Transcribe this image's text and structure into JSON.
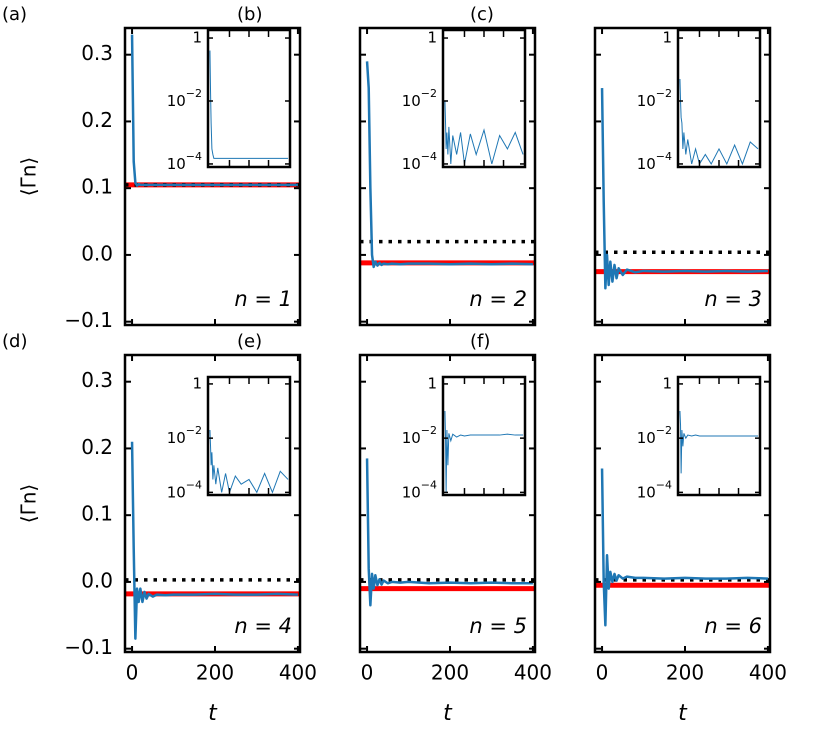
{
  "chart_data": [
    {
      "type": "line",
      "panel_label": "(a)",
      "annotation": "n = 1",
      "ylabel": "⟨Γn⟩",
      "x": [
        0,
        4,
        8,
        12,
        16,
        20,
        25,
        30,
        35,
        40,
        50,
        60,
        80,
        100,
        150,
        200,
        250,
        300,
        350,
        400
      ],
      "series": [
        {
          "color": "#1f77b4",
          "values": [
            0.33,
            0.14,
            0.108,
            0.104,
            0.106,
            0.105,
            0.105,
            0.105,
            0.105,
            0.105,
            0.105,
            0.105,
            0.105,
            0.105,
            0.105,
            0.105,
            0.105,
            0.105,
            0.105,
            0.105
          ]
        }
      ],
      "hlines": [
        {
          "value": 0.105,
          "color": "#ff0000",
          "style": "solid"
        },
        {
          "value": 0.105,
          "color": "#000000",
          "style": "dotted"
        }
      ],
      "xlim": [
        -17,
        405
      ],
      "ylim": [
        -0.105,
        0.34
      ],
      "xticks": [
        0,
        200,
        400
      ],
      "yticks": [
        {
          "value": -0.1,
          "label": "−0.1"
        },
        {
          "value": 0,
          "label": "0.0"
        },
        0.1,
        0.2,
        0.3
      ],
      "inset": {
        "type": "line",
        "log_y": true,
        "color": "#1f77b4",
        "x": [
          0,
          3,
          6,
          10,
          15,
          20,
          30,
          40,
          60,
          80,
          100,
          130,
          160,
          200,
          240,
          280,
          320,
          360,
          400
        ],
        "values": [
          0.4,
          0.02,
          0.002,
          0.0003,
          0.0002,
          0.00015,
          0.00015,
          0.00015,
          0.00015,
          0.00015,
          0.00015,
          0.00015,
          0.00015,
          0.00015,
          0.00015,
          0.00015,
          0.00015,
          0.00015,
          0.00015
        ],
        "xlim": [
          -10,
          410
        ],
        "ylim": [
          8e-05,
          1.8
        ],
        "xticks": [
          100,
          200,
          300
        ],
        "yticks": [
          1,
          {
            "value": 0.01,
            "label": "10−2"
          },
          {
            "value": 0.0001,
            "label": "10−4"
          }
        ]
      }
    },
    {
      "type": "line",
      "panel_label": "(b)",
      "annotation": "n = 2",
      "x": [
        0,
        4,
        8,
        12,
        16,
        20,
        25,
        30,
        35,
        40,
        50,
        60,
        80,
        100,
        150,
        200,
        250,
        300,
        350,
        400
      ],
      "series": [
        {
          "color": "#1f77b4",
          "values": [
            0.29,
            0.25,
            0.1,
            0.0,
            -0.018,
            -0.01,
            -0.016,
            -0.012,
            -0.015,
            -0.013,
            -0.014,
            -0.013,
            -0.014,
            -0.013,
            -0.013,
            -0.014,
            -0.013,
            -0.014,
            -0.013,
            -0.014
          ]
        }
      ],
      "hlines": [
        {
          "value": -0.012,
          "color": "#ff0000",
          "style": "solid"
        },
        {
          "value": 0.02,
          "color": "#000000",
          "style": "dotted"
        }
      ],
      "xlim": [
        -17,
        405
      ],
      "ylim": [
        -0.105,
        0.34
      ],
      "xticks": [
        0,
        200,
        400
      ],
      "yticks": [
        -0.1,
        0,
        0.1,
        0.2,
        0.3
      ],
      "inset": {
        "type": "line",
        "log_y": true,
        "color": "#1f77b4",
        "x": [
          0,
          3,
          6,
          10,
          15,
          20,
          30,
          40,
          60,
          80,
          100,
          130,
          160,
          200,
          240,
          280,
          320,
          360,
          400
        ],
        "values": [
          0.01,
          0.002,
          0.0003,
          0.001,
          0.0002,
          0.0015,
          0.0001,
          0.0008,
          0.0002,
          0.001,
          0.0001,
          0.0009,
          0.0002,
          0.0012,
          0.0001,
          0.0008,
          0.0003,
          0.001,
          0.0002
        ],
        "xlim": [
          -10,
          410
        ],
        "ylim": [
          8e-05,
          1.8
        ],
        "xticks": [
          100,
          200,
          300
        ],
        "yticks": [
          1,
          {
            "value": 0.01,
            "label": "10−2"
          },
          {
            "value": 0.0001,
            "label": "10−4"
          }
        ]
      }
    },
    {
      "type": "line",
      "panel_label": "(c)",
      "annotation": "n = 3",
      "x": [
        0,
        4,
        8,
        12,
        16,
        20,
        25,
        30,
        35,
        40,
        50,
        60,
        80,
        100,
        150,
        200,
        250,
        300,
        350,
        400
      ],
      "series": [
        {
          "color": "#1f77b4",
          "values": [
            0.25,
            0.08,
            -0.05,
            0.0,
            -0.045,
            -0.01,
            -0.04,
            -0.015,
            -0.035,
            -0.02,
            -0.03,
            -0.022,
            -0.026,
            -0.024,
            -0.025,
            -0.024,
            -0.025,
            -0.024,
            -0.025,
            -0.024
          ]
        }
      ],
      "hlines": [
        {
          "value": -0.025,
          "color": "#ff0000",
          "style": "solid"
        },
        {
          "value": 0.004,
          "color": "#000000",
          "style": "dotted"
        }
      ],
      "xlim": [
        -17,
        405
      ],
      "ylim": [
        -0.105,
        0.34
      ],
      "xticks": [
        0,
        200,
        400
      ],
      "yticks": [
        -0.1,
        0,
        0.1,
        0.2,
        0.3
      ],
      "inset": {
        "type": "line",
        "log_y": true,
        "color": "#1f77b4",
        "x": [
          0,
          3,
          6,
          10,
          15,
          20,
          30,
          40,
          60,
          80,
          100,
          130,
          160,
          200,
          240,
          280,
          320,
          360,
          400
        ],
        "values": [
          0.05,
          0.01,
          0.003,
          0.002,
          0.0003,
          0.001,
          0.0002,
          0.0006,
          0.0001,
          0.0003,
          0.0001,
          0.0002,
          0.0001,
          0.0003,
          0.0001,
          0.0004,
          0.0001,
          0.0005,
          0.0003
        ],
        "xlim": [
          -10,
          410
        ],
        "ylim": [
          8e-05,
          1.8
        ],
        "xticks": [
          100,
          200,
          300
        ],
        "yticks": [
          1,
          {
            "value": 0.01,
            "label": "10−2"
          },
          {
            "value": 0.0001,
            "label": "10−4"
          }
        ]
      }
    },
    {
      "type": "line",
      "panel_label": "(d)",
      "annotation": "n = 4",
      "ylabel": "⟨Γn⟩",
      "xlabel": "t",
      "x": [
        0,
        4,
        8,
        12,
        16,
        20,
        25,
        30,
        35,
        40,
        50,
        60,
        80,
        100,
        150,
        200,
        250,
        300,
        350,
        400
      ],
      "series": [
        {
          "color": "#1f77b4",
          "values": [
            0.21,
            0.05,
            -0.085,
            -0.01,
            -0.03,
            -0.01,
            -0.03,
            -0.015,
            -0.025,
            -0.018,
            -0.022,
            -0.019,
            -0.02,
            -0.019,
            -0.019,
            -0.018,
            -0.019,
            -0.019,
            -0.018,
            -0.019
          ]
        }
      ],
      "hlines": [
        {
          "value": -0.018,
          "color": "#ff0000",
          "style": "solid"
        },
        {
          "value": 0.003,
          "color": "#000000",
          "style": "dotted"
        }
      ],
      "xlim": [
        -17,
        405
      ],
      "ylim": [
        -0.105,
        0.34
      ],
      "xticks": [
        0,
        200,
        400
      ],
      "yticks": [
        {
          "value": -0.1,
          "label": "−0.1"
        },
        {
          "value": 0,
          "label": "0.0"
        },
        0.1,
        0.2,
        0.3
      ],
      "inset": {
        "type": "line",
        "log_y": true,
        "color": "#1f77b4",
        "x": [
          0,
          3,
          6,
          10,
          15,
          20,
          30,
          40,
          60,
          80,
          100,
          130,
          160,
          200,
          240,
          280,
          320,
          360,
          400
        ],
        "values": [
          0.02,
          0.005,
          0.001,
          0.003,
          0.0003,
          0.001,
          0.0002,
          0.0008,
          0.0001,
          0.0005,
          0.0001,
          0.0004,
          0.0002,
          0.0003,
          0.0001,
          0.0005,
          0.0001,
          0.0006,
          0.0003
        ],
        "xlim": [
          -10,
          410
        ],
        "ylim": [
          8e-05,
          1.8
        ],
        "xticks": [
          100,
          200,
          300
        ],
        "yticks": [
          1,
          {
            "value": 0.01,
            "label": "10−2"
          },
          {
            "value": 0.0001,
            "label": "10−4"
          }
        ]
      }
    },
    {
      "type": "line",
      "panel_label": "(e)",
      "annotation": "n = 5",
      "xlabel": "t",
      "x": [
        0,
        4,
        8,
        12,
        16,
        20,
        25,
        30,
        35,
        40,
        50,
        60,
        80,
        100,
        150,
        200,
        250,
        300,
        350,
        400
      ],
      "series": [
        {
          "color": "#1f77b4",
          "values": [
            0.185,
            0.02,
            -0.035,
            0.012,
            -0.01,
            0.01,
            -0.005,
            0.004,
            -0.004,
            0.002,
            -0.002,
            0.0,
            -0.001,
            0.0,
            -0.002,
            -0.001,
            -0.002,
            -0.001,
            -0.002,
            -0.002
          ]
        }
      ],
      "hlines": [
        {
          "value": -0.01,
          "color": "#ff0000",
          "style": "solid"
        },
        {
          "value": 0.003,
          "color": "#000000",
          "style": "dotted"
        }
      ],
      "xlim": [
        -17,
        405
      ],
      "ylim": [
        -0.105,
        0.34
      ],
      "xticks": [
        0,
        200,
        400
      ],
      "yticks": [
        -0.1,
        0,
        0.1,
        0.2,
        0.3
      ],
      "inset": {
        "type": "line",
        "log_y": true,
        "color": "#1f77b4",
        "x": [
          0,
          3,
          6,
          10,
          15,
          20,
          30,
          40,
          60,
          80,
          100,
          130,
          160,
          200,
          240,
          280,
          320,
          360,
          400
        ],
        "values": [
          0.1,
          0.01,
          0.0001,
          0.02,
          0.001,
          0.015,
          0.008,
          0.014,
          0.011,
          0.013,
          0.012,
          0.013,
          0.013,
          0.013,
          0.013,
          0.013,
          0.014,
          0.013,
          0.013
        ],
        "xlim": [
          -10,
          410
        ],
        "ylim": [
          8e-05,
          1.8
        ],
        "xticks": [
          100,
          200,
          300
        ],
        "yticks": [
          1,
          {
            "value": 0.01,
            "label": "10−2"
          },
          {
            "value": 0.0001,
            "label": "10−4"
          }
        ]
      }
    },
    {
      "type": "line",
      "panel_label": "(f)",
      "annotation": "n = 6",
      "xlabel": "t",
      "x": [
        0,
        4,
        8,
        12,
        16,
        20,
        25,
        30,
        35,
        40,
        50,
        60,
        80,
        100,
        150,
        200,
        250,
        300,
        350,
        400
      ],
      "series": [
        {
          "color": "#1f77b4",
          "values": [
            0.17,
            0.0,
            -0.065,
            0.04,
            -0.01,
            0.015,
            0.0,
            0.012,
            0.002,
            0.01,
            0.005,
            0.008,
            0.006,
            0.006,
            0.005,
            0.006,
            0.005,
            0.005,
            0.006,
            0.005
          ]
        }
      ],
      "hlines": [
        {
          "value": -0.005,
          "color": "#ff0000",
          "style": "solid"
        },
        {
          "value": 0.003,
          "color": "#000000",
          "style": "dotted"
        }
      ],
      "xlim": [
        -17,
        405
      ],
      "ylim": [
        -0.105,
        0.34
      ],
      "xticks": [
        0,
        200,
        400
      ],
      "yticks": [
        -0.1,
        0,
        0.1,
        0.2,
        0.3
      ],
      "inset": {
        "type": "line",
        "log_y": true,
        "color": "#1f77b4",
        "x": [
          0,
          3,
          6,
          10,
          15,
          20,
          30,
          40,
          60,
          80,
          100,
          130,
          160,
          200,
          240,
          280,
          320,
          360,
          400
        ],
        "values": [
          0.1,
          0.03,
          0.0005,
          0.02,
          0.005,
          0.015,
          0.01,
          0.013,
          0.012,
          0.013,
          0.012,
          0.012,
          0.012,
          0.012,
          0.012,
          0.012,
          0.012,
          0.012,
          0.012
        ],
        "xlim": [
          -10,
          410
        ],
        "ylim": [
          8e-05,
          1.8
        ],
        "xticks": [
          100,
          200,
          300
        ],
        "yticks": [
          1,
          {
            "value": 0.01,
            "label": "10−2"
          },
          {
            "value": 0.0001,
            "label": "10−4"
          }
        ]
      }
    }
  ]
}
